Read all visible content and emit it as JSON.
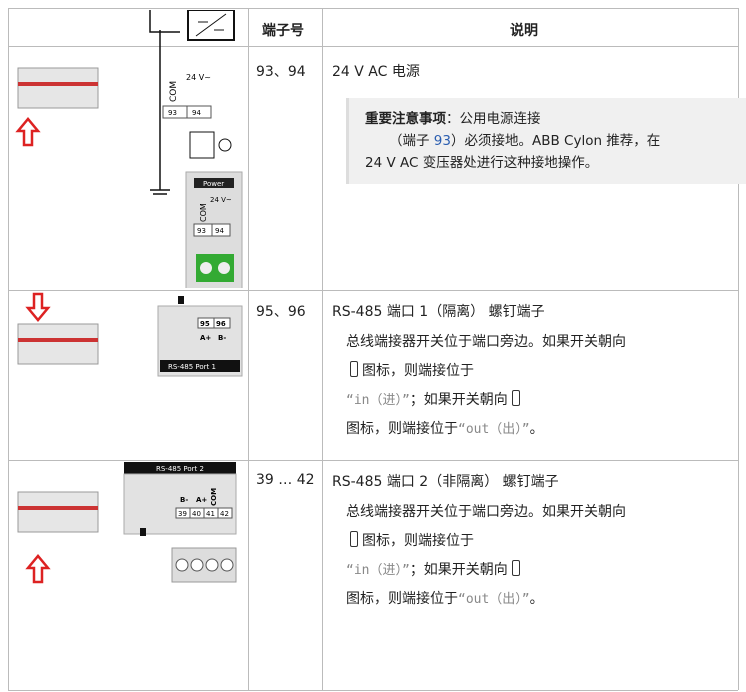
{
  "table": {
    "header": [
      "端子号",
      "说明"
    ],
    "rows": [
      {
        "terminal": "93、94",
        "title": "24 V AC 电源",
        "note": {
          "label": "重要注意事项",
          "text1": "：公用电源连接",
          "text2": "（端子 ",
          "link": "93",
          "text3": "）必须接地。ABB Cylon 推荐，在",
          "text4": "24 V AC 变压器处进行这种接地操作。"
        },
        "diagram": [
          "COM",
          "24 V~",
          "93",
          "94",
          "Power",
          "COM",
          "24 V~",
          "93",
          "94"
        ]
      },
      {
        "terminal": "95、96",
        "title": "RS-485 端口 1（隔离） 螺钉端子",
        "text": {
          "line1": "总线端接器开关位于端口旁边。如果开关朝向",
          "line2": "图标，则端接位于",
          "in": "“in（进）”",
          "line3": "；如果开关朝向",
          "line4": "图标，则端接位于",
          "out": "“out（出）”",
          "end": "。"
        },
        "diagram": [
          "95",
          "96",
          "A+",
          "B-",
          "RS-485 Port 1"
        ]
      },
      {
        "terminal": "39 … 42",
        "title": "RS-485 端口 2（非隔离） 螺钉端子",
        "text": {
          "line1": "总线端接器开关位于端口旁边。如果开关朝向",
          "line2": "图标，则端接位于",
          "in": "“in（进）”",
          "line3": "；如果开关朝向",
          "line4": "图标，则端接位于",
          "out": "“out（出）”",
          "end": "。"
        },
        "diagram": [
          "RS-485 Port 2",
          "B-",
          "A+",
          "COM",
          "39",
          "40",
          "41",
          "42"
        ]
      }
    ]
  }
}
